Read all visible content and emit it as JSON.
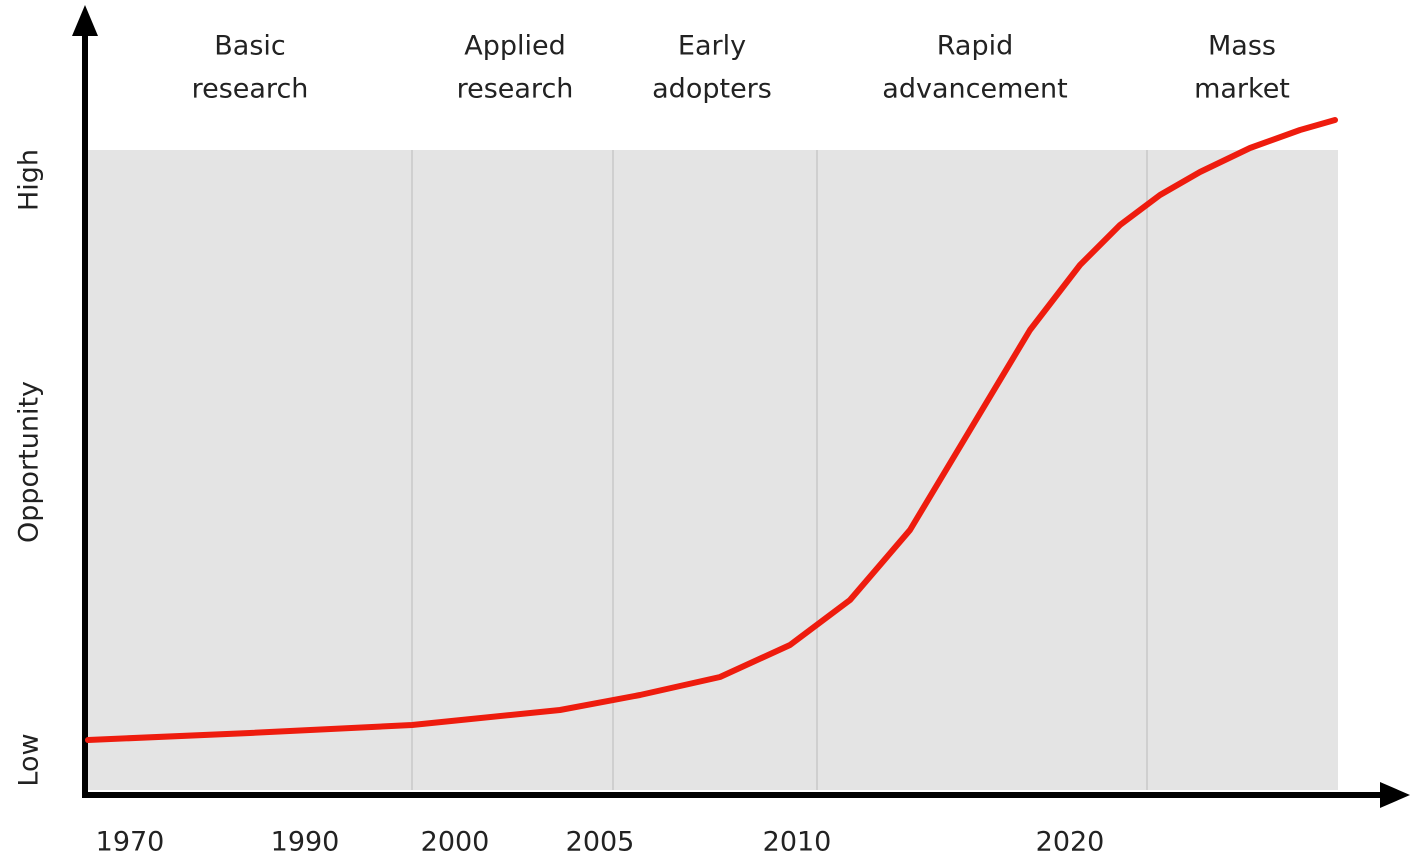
{
  "chart_data": {
    "type": "line",
    "phases": [
      [
        "Basic",
        "research"
      ],
      [
        "Applied",
        "research"
      ],
      [
        "Early",
        "adopters"
      ],
      [
        "Rapid",
        "advancement"
      ],
      [
        "Mass",
        "market"
      ]
    ],
    "categories": [
      "1970",
      "1990",
      "2000",
      "2005",
      "2010",
      "2020"
    ],
    "y_labels": [
      "Low",
      "Opportunity",
      "High"
    ],
    "color": "#ee1c0e"
  }
}
